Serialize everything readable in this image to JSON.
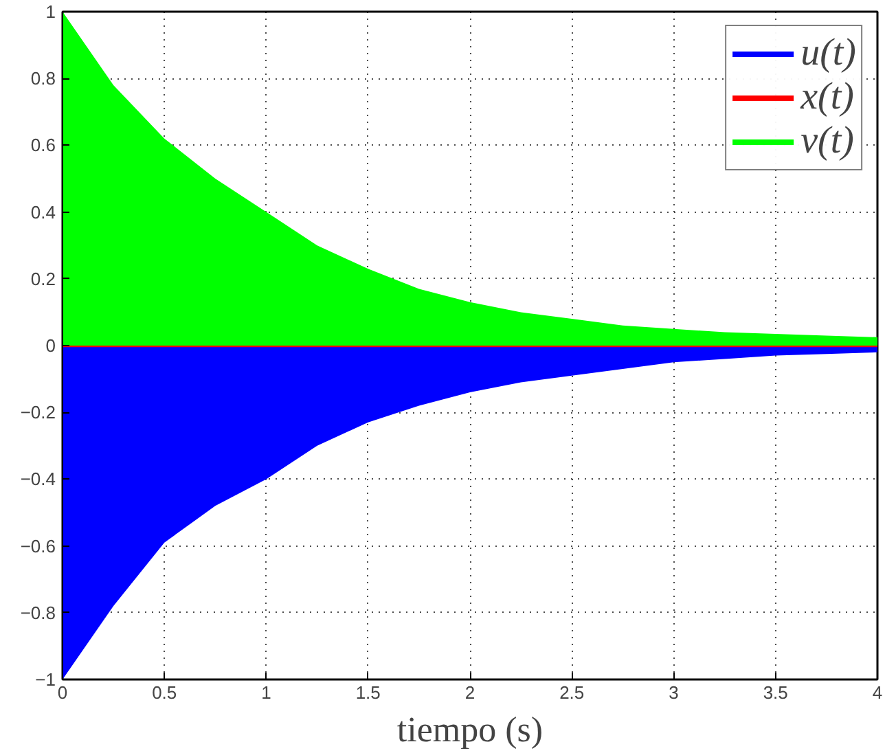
{
  "chart_data": {
    "type": "area",
    "xlabel": "tiempo (s)",
    "x": [
      0,
      0.25,
      0.5,
      0.75,
      1,
      1.25,
      1.5,
      1.75,
      2,
      2.25,
      2.5,
      2.75,
      3,
      3.25,
      3.5,
      3.75,
      4
    ],
    "series": [
      {
        "name": "u(t)",
        "color": "#0000ff",
        "values": [
          -1,
          -0.78,
          -0.59,
          -0.48,
          -0.4,
          -0.3,
          -0.23,
          -0.18,
          -0.14,
          -0.11,
          -0.09,
          -0.07,
          -0.05,
          -0.04,
          -0.03,
          -0.025,
          -0.02
        ]
      },
      {
        "name": "x(t)",
        "color": "#ff0000",
        "type": "line",
        "values": [
          0.01,
          0.01,
          0.01,
          0.01,
          0.01,
          0.01,
          0.01,
          0.01,
          0.01,
          0.01,
          0.01,
          0.01,
          0.01,
          0.01,
          0.01,
          0.01,
          0.01
        ]
      },
      {
        "name": "v(t)",
        "color": "#00ff00",
        "values": [
          1,
          0.78,
          0.62,
          0.5,
          0.4,
          0.3,
          0.23,
          0.17,
          0.13,
          0.1,
          0.08,
          0.06,
          0.05,
          0.04,
          0.035,
          0.03,
          0.025
        ]
      }
    ],
    "xlim": [
      0,
      4
    ],
    "ylim": [
      -1,
      1
    ],
    "xticks": [
      0,
      0.5,
      1,
      1.5,
      2,
      2.5,
      3,
      3.5,
      4
    ],
    "yticks": [
      -1,
      -0.8,
      -0.6,
      -0.4,
      -0.2,
      0,
      0.2,
      0.4,
      0.6,
      0.8,
      1
    ],
    "grid": true,
    "legend": "top right"
  }
}
